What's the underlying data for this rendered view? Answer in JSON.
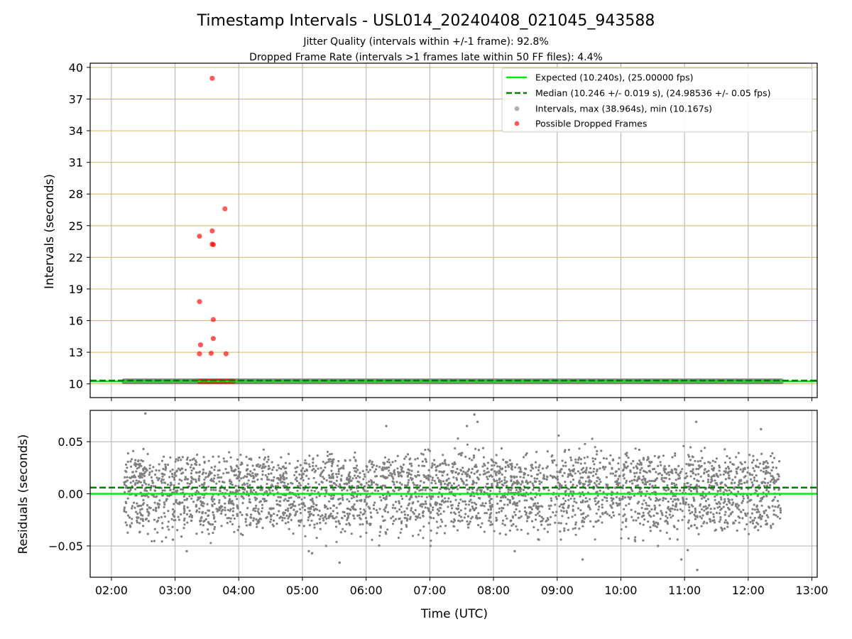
{
  "title": "Timestamp Intervals - USL014_20240408_021045_943588",
  "subtitle_lines": [
    "Jitter Quality (intervals within +/-1 frame): 92.8%",
    "Dropped Frame Rate (intervals >1 frames late within 50 FF files): 4.4%"
  ],
  "colors": {
    "expected": "#00ee00",
    "median": "#008000",
    "intervals": "#808080",
    "dropped": "#ff0000",
    "hgrid_top": "#d2b864",
    "grid": "#b0b0b0"
  },
  "chart_data": [
    {
      "type": "scatter",
      "name": "intervals",
      "xlabel": "",
      "ylabel": "Intervals (seconds)",
      "xlim": [
        "01:40",
        "13:05"
      ],
      "ylim": [
        8.7,
        40.4
      ],
      "y_ticks": [
        "10",
        "13",
        "16",
        "19",
        "22",
        "25",
        "28",
        "31",
        "34",
        "37",
        "40"
      ],
      "x_ticks": [
        "02:00",
        "03:00",
        "04:00",
        "05:00",
        "06:00",
        "07:00",
        "08:00",
        "09:00",
        "10:00",
        "11:00",
        "12:00",
        "13:00"
      ],
      "grid": true,
      "legend_position": "top-right",
      "legend": [
        "Expected (10.240s), (25.00000 fps)",
        "Median (10.246 +/- 0.019 s), (24.98536 +/- 0.05 fps)",
        "Intervals, max (38.964s), min (10.167s)",
        "Possible Dropped Frames"
      ],
      "expected_line": 10.24,
      "median_line": 10.246,
      "intervals_band": {
        "x_start": "02:12",
        "x_end": "12:31",
        "y": 10.24
      },
      "dropped_frames": [
        {
          "x": "03:35",
          "y": 38.964
        },
        {
          "x": "03:47",
          "y": 26.6
        },
        {
          "x": "03:23",
          "y": 24.0
        },
        {
          "x": "03:35",
          "y": 24.5
        },
        {
          "x": "03:35",
          "y": 23.25
        },
        {
          "x": "03:36",
          "y": 23.2
        },
        {
          "x": "03:23",
          "y": 17.8
        },
        {
          "x": "03:36",
          "y": 16.1
        },
        {
          "x": "03:36",
          "y": 14.3
        },
        {
          "x": "03:24",
          "y": 13.7
        },
        {
          "x": "03:23",
          "y": 12.85
        },
        {
          "x": "03:34",
          "y": 12.9
        },
        {
          "x": "03:48",
          "y": 12.85
        }
      ],
      "dropped_band": {
        "x_start": "03:23",
        "x_end": "03:57",
        "y": 10.24
      }
    },
    {
      "type": "scatter",
      "name": "residuals",
      "xlabel": "Time (UTC)",
      "ylabel": "Residuals (seconds)",
      "xlim": [
        "01:40",
        "13:05"
      ],
      "ylim": [
        -0.08,
        0.08
      ],
      "y_ticks": [
        "0.05",
        "0.00",
        "−0.05"
      ],
      "y_tick_values": [
        0.05,
        0.0,
        -0.05
      ],
      "x_ticks": [
        "02:00",
        "03:00",
        "04:00",
        "05:00",
        "06:00",
        "07:00",
        "08:00",
        "09:00",
        "10:00",
        "11:00",
        "12:00",
        "13:00"
      ],
      "grid": true,
      "zero_line": 0.0,
      "median_line": 0.006,
      "residuals_x_range": [
        "02:12",
        "12:31"
      ],
      "residual_levels": [
        -0.02,
        0.0,
        0.02
      ],
      "residual_spread": 0.01,
      "residual_count": 3600,
      "outliers": [
        {
          "x": "02:32",
          "y": 0.077
        },
        {
          "x": "07:42",
          "y": 0.076
        },
        {
          "x": "07:45",
          "y": 0.069
        },
        {
          "x": "11:11",
          "y": 0.069
        },
        {
          "x": "06:19",
          "y": 0.065
        },
        {
          "x": "07:35",
          "y": 0.065
        },
        {
          "x": "12:12",
          "y": 0.062
        },
        {
          "x": "02:58",
          "y": -0.044
        },
        {
          "x": "03:06",
          "y": -0.041
        },
        {
          "x": "03:11",
          "y": -0.055
        },
        {
          "x": "05:06",
          "y": -0.055
        },
        {
          "x": "05:09",
          "y": -0.057
        },
        {
          "x": "05:35",
          "y": -0.066
        },
        {
          "x": "08:20",
          "y": -0.055
        },
        {
          "x": "09:24",
          "y": -0.063
        },
        {
          "x": "10:35",
          "y": -0.05
        },
        {
          "x": "10:57",
          "y": -0.063
        },
        {
          "x": "11:03",
          "y": -0.054
        },
        {
          "x": "11:12",
          "y": -0.073
        }
      ]
    }
  ]
}
